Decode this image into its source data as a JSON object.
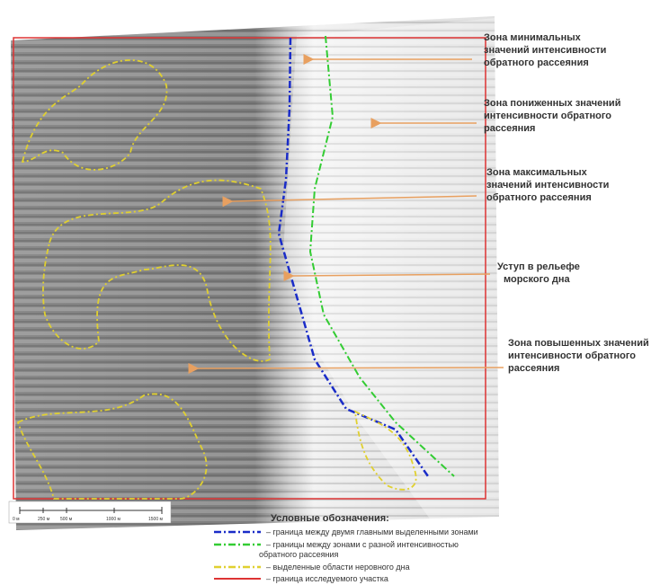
{
  "annotations": [
    {
      "lines": [
        "Зона минимальных",
        "значений интенсивности",
        "обратного  рассеяния"
      ]
    },
    {
      "lines": [
        "Зона пониженных значений",
        "интенсивности обратного",
        " рассеяния"
      ]
    },
    {
      "lines": [
        "Зона максимальных",
        "значений интенсивности",
        "обратного рассеяния"
      ]
    },
    {
      "lines": [
        "Уступ в рельефе",
        "морского дна"
      ]
    },
    {
      "lines": [
        "Зона повышенных значений",
        "интенсивности обратного",
        "рассеяния"
      ]
    }
  ],
  "scale_bar": {
    "labels": [
      "0 м",
      "250 м",
      "500 м",
      "1000 м",
      "1500 м"
    ]
  },
  "legend": {
    "title": "Условные обозначения:",
    "items": [
      {
        "lines": [
          "– граница между двумя главными выделенными зонами"
        ]
      },
      {
        "lines": [
          "– границы между зонами с разной интенсивностью",
          "обратного рассеяния"
        ]
      },
      {
        "lines": [
          "– выделенные области неровного дна"
        ]
      },
      {
        "lines": [
          "– граница исследуемого участка"
        ]
      }
    ]
  }
}
